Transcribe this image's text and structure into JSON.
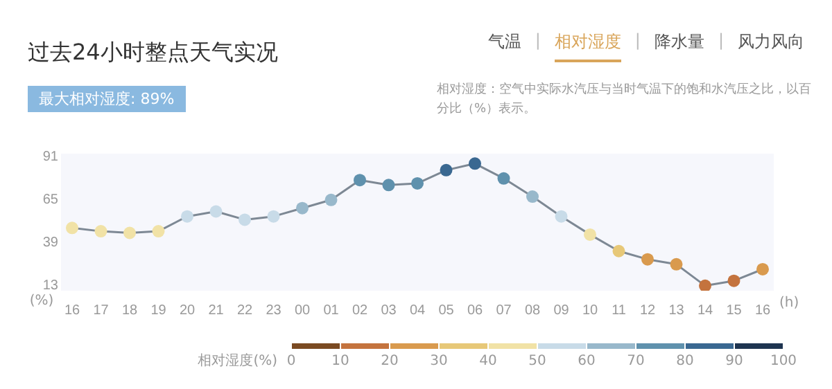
{
  "chart_data": {
    "type": "line",
    "title": "过去24小时整点天气实况",
    "subtitle": "最大相对湿度: 89%",
    "annotations": [
      "气温",
      "|",
      "相对湿度",
      "|",
      "降水量",
      "|",
      "风力风向",
      "相对湿度：空气中实际水汽压与当时气温下的饱和水汽压之比，以百分比（%）表示。"
    ],
    "categories": [
      "16",
      "17",
      "18",
      "19",
      "20",
      "21",
      "22",
      "23",
      "00",
      "01",
      "02",
      "03",
      "04",
      "05",
      "06",
      "07",
      "08",
      "09",
      "10",
      "11",
      "12",
      "13",
      "14",
      "15",
      "16"
    ],
    "series": [
      {
        "color": "#7d8894",
        "values": [
          48,
          46,
          45,
          46,
          55,
          58,
          53,
          55,
          60,
          65,
          77,
          74,
          75,
          83,
          87,
          78,
          67,
          55,
          44,
          34,
          29,
          26,
          13,
          16,
          23
        ]
      }
    ],
    "ylim": [
      10,
      93
    ],
    "yticks": [
      13,
      39,
      65,
      91
    ],
    "ylabel": "(%)",
    "xlabel": "(h)",
    "clabel": "相对湿度(%)",
    "clim": [
      0,
      100
    ],
    "cticks": [
      0,
      10,
      20,
      30,
      40,
      50,
      60,
      70,
      80,
      90,
      100
    ],
    "marker": "circle",
    "line_style": "solid",
    "grid": false,
    "legend": false
  }
}
